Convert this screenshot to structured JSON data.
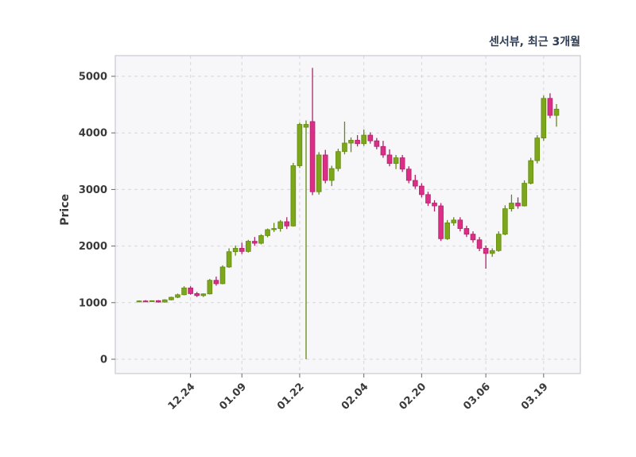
{
  "header": {
    "title": "센서뷰, 최근 3개월"
  },
  "chart_data": {
    "type": "candlestick",
    "title": "센서뷰, 최근 3개월",
    "ylabel": "Price",
    "xlabel": "",
    "legend": "none",
    "grid": "dashed-both",
    "ylim": [
      -250,
      5350
    ],
    "y_ticks": [
      0,
      1000,
      2000,
      3000,
      4000,
      5000
    ],
    "x_ticks": [
      {
        "label": "12.24",
        "index": 8
      },
      {
        "label": "01.09",
        "index": 16
      },
      {
        "label": "01.22",
        "index": 25
      },
      {
        "label": "02.04",
        "index": 35
      },
      {
        "label": "02.20",
        "index": 44
      },
      {
        "label": "03.06",
        "index": 54
      },
      {
        "label": "03.19",
        "index": 63
      }
    ],
    "candle_format": [
      "open",
      "high",
      "low",
      "close"
    ],
    "candles": [
      [
        1020,
        1040,
        1005,
        1030
      ],
      [
        1030,
        1045,
        1015,
        1025
      ],
      [
        1025,
        1040,
        1010,
        1035
      ],
      [
        1035,
        1045,
        1000,
        1010
      ],
      [
        1010,
        1060,
        1000,
        1050
      ],
      [
        1050,
        1105,
        1040,
        1095
      ],
      [
        1095,
        1160,
        1080,
        1140
      ],
      [
        1140,
        1290,
        1130,
        1260
      ],
      [
        1260,
        1290,
        1140,
        1160
      ],
      [
        1160,
        1190,
        1100,
        1125
      ],
      [
        1125,
        1165,
        1100,
        1155
      ],
      [
        1155,
        1420,
        1145,
        1395
      ],
      [
        1395,
        1460,
        1300,
        1335
      ],
      [
        1335,
        1660,
        1325,
        1630
      ],
      [
        1630,
        1960,
        1615,
        1900
      ],
      [
        1900,
        2010,
        1830,
        1960
      ],
      [
        1960,
        2060,
        1860,
        1905
      ],
      [
        1905,
        2110,
        1885,
        2085
      ],
      [
        2085,
        2160,
        2005,
        2050
      ],
      [
        2050,
        2210,
        2030,
        2185
      ],
      [
        2185,
        2310,
        2155,
        2290
      ],
      [
        2290,
        2410,
        2250,
        2310
      ],
      [
        2310,
        2460,
        2255,
        2430
      ],
      [
        2430,
        2510,
        2300,
        2355
      ],
      [
        2355,
        3470,
        2345,
        3420
      ],
      [
        3420,
        4180,
        3380,
        4150
      ],
      [
        4100,
        4220,
        0,
        4150
      ],
      [
        4200,
        5150,
        2900,
        2960
      ],
      [
        2960,
        3660,
        2910,
        3610
      ],
      [
        3610,
        3700,
        3110,
        3160
      ],
      [
        3160,
        3420,
        3060,
        3370
      ],
      [
        3370,
        3720,
        3320,
        3670
      ],
      [
        3670,
        4200,
        3620,
        3820
      ],
      [
        3820,
        3920,
        3660,
        3870
      ],
      [
        3870,
        3960,
        3760,
        3810
      ],
      [
        3810,
        4060,
        3770,
        3960
      ],
      [
        3960,
        4010,
        3810,
        3860
      ],
      [
        3860,
        3910,
        3710,
        3760
      ],
      [
        3760,
        3860,
        3560,
        3610
      ],
      [
        3610,
        3710,
        3410,
        3460
      ],
      [
        3460,
        3610,
        3360,
        3560
      ],
      [
        3560,
        3610,
        3310,
        3360
      ],
      [
        3360,
        3410,
        3110,
        3160
      ],
      [
        3160,
        3260,
        3010,
        3060
      ],
      [
        3060,
        3110,
        2860,
        2910
      ],
      [
        2910,
        2960,
        2710,
        2760
      ],
      [
        2760,
        2810,
        2610,
        2710
      ],
      [
        2710,
        2760,
        2090,
        2130
      ],
      [
        2130,
        2460,
        2110,
        2410
      ],
      [
        2410,
        2510,
        2360,
        2460
      ],
      [
        2460,
        2510,
        2260,
        2310
      ],
      [
        2310,
        2360,
        2160,
        2210
      ],
      [
        2210,
        2260,
        2060,
        2110
      ],
      [
        2110,
        2160,
        1910,
        1960
      ],
      [
        1960,
        2010,
        1600,
        1870
      ],
      [
        1870,
        1960,
        1810,
        1920
      ],
      [
        1920,
        2260,
        1900,
        2210
      ],
      [
        2210,
        2720,
        2190,
        2660
      ],
      [
        2660,
        2910,
        2610,
        2760
      ],
      [
        2760,
        2860,
        2660,
        2710
      ],
      [
        2710,
        3160,
        2700,
        3110
      ],
      [
        3110,
        3560,
        3090,
        3510
      ],
      [
        3510,
        3960,
        3460,
        3910
      ],
      [
        3910,
        4660,
        3860,
        4610
      ],
      [
        4610,
        4700,
        4260,
        4310
      ],
      [
        4310,
        4510,
        4110,
        4420
      ]
    ],
    "colors": {
      "up": "#7CA71A",
      "up_edge": "#648a12",
      "down": "#DB2E86",
      "down_edge": "#b0246b",
      "plot_bg": "#f7f7fa",
      "grid": "#d6d6de",
      "spine": "#c9c9d1",
      "tick_mark": "#666666",
      "tick_text": "#3a3a3a",
      "title_text": "#2e3d54"
    }
  }
}
